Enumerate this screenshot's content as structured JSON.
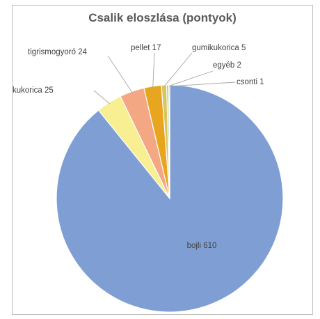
{
  "chart_data": {
    "type": "pie",
    "title": "Csalik eloszlása (pontyok)",
    "slices": [
      {
        "name": "bojli",
        "value": 610,
        "label": "bojli 610",
        "color": "#7f9fd4"
      },
      {
        "name": "kukorica",
        "value": 25,
        "label": "kukorica 25",
        "color": "#f7ef91"
      },
      {
        "name": "tigrismogyoró",
        "value": 24,
        "label": "tigrismogyoró 24",
        "color": "#f3a883"
      },
      {
        "name": "pellet",
        "value": 17,
        "label": "pellet 17",
        "color": "#e8a51f"
      },
      {
        "name": "gumikukorica",
        "value": 5,
        "label": "gumikukorica 5",
        "color": "#d7c65f"
      },
      {
        "name": "egyéb",
        "value": 2,
        "label": "egyéb 2",
        "color": "#b5c96a"
      },
      {
        "name": "csonti",
        "value": 1,
        "label": "csonti 1",
        "color": "#9cb7e0"
      }
    ],
    "legend": "none",
    "data_labels": "outside with leader lines"
  }
}
